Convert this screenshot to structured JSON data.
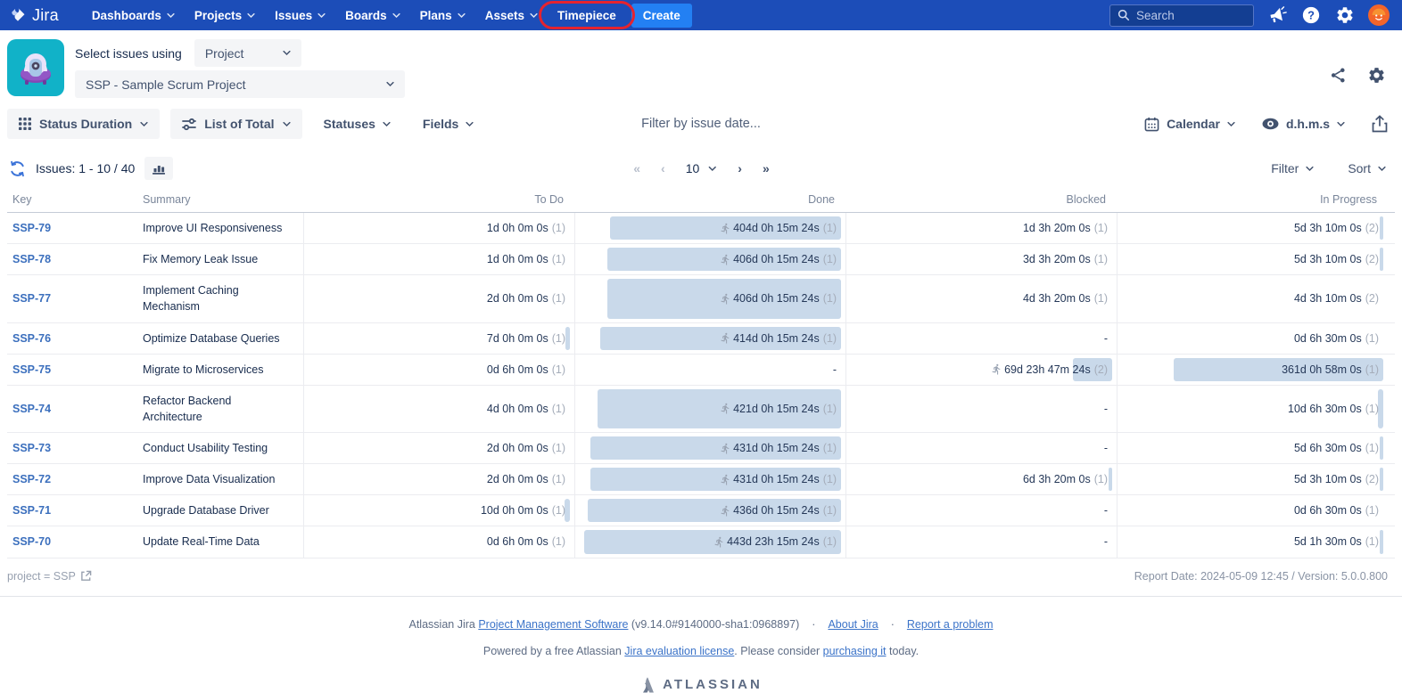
{
  "nav": {
    "logo_text": "Jira",
    "items": [
      "Dashboards",
      "Projects",
      "Issues",
      "Boards",
      "Plans",
      "Assets"
    ],
    "timepiece_label": "Timepiece",
    "create_label": "Create",
    "search_placeholder": "Search"
  },
  "header": {
    "select_label": "Select issues using",
    "mode_value": "Project",
    "project_value": "SSP - Sample Scrum Project"
  },
  "toolbar": {
    "report_type_label": "Status Duration",
    "view_mode_label": "List of Total",
    "statuses_label": "Statuses",
    "fields_label": "Fields",
    "date_filter_placeholder": "Filter by issue date...",
    "calendar_label": "Calendar",
    "time_format_label": "d.h.m.s"
  },
  "listbar": {
    "issues_label": "Issues: 1 - 10 / 40",
    "page_size": "10",
    "filter_label": "Filter",
    "sort_label": "Sort"
  },
  "table": {
    "columns": [
      "Key",
      "Summary",
      "To Do",
      "Done",
      "Blocked",
      "In Progress"
    ],
    "rows": [
      {
        "key": "SSP-79",
        "summary": "Improve UI Responsiveness",
        "todo": {
          "text": "1d 0h 0m 0s",
          "count": "(1)",
          "bar": 0
        },
        "done": {
          "text": "404d 0h 15m 24s",
          "count": "(1)",
          "bar": 0.88,
          "runner": true
        },
        "blocked": {
          "text": "1d 3h 20m 0s",
          "count": "(1)",
          "bar": 0
        },
        "inprogress": {
          "text": "5d 3h 10m 0s",
          "count": "(2)",
          "bar": 0.012
        }
      },
      {
        "key": "SSP-78",
        "summary": "Fix Memory Leak Issue",
        "todo": {
          "text": "1d 0h 0m 0s",
          "count": "(1)",
          "bar": 0
        },
        "done": {
          "text": "406d 0h 15m 24s",
          "count": "(1)",
          "bar": 0.89,
          "runner": true
        },
        "blocked": {
          "text": "3d 3h 20m 0s",
          "count": "(1)",
          "bar": 0
        },
        "inprogress": {
          "text": "5d 3h 10m 0s",
          "count": "(2)",
          "bar": 0.012
        }
      },
      {
        "key": "SSP-77",
        "summary": "Implement Caching Mechanism",
        "todo": {
          "text": "2d 0h 0m 0s",
          "count": "(1)",
          "bar": 0
        },
        "done": {
          "text": "406d 0h 15m 24s",
          "count": "(1)",
          "bar": 0.89,
          "runner": true
        },
        "blocked": {
          "text": "4d 3h 20m 0s",
          "count": "(1)",
          "bar": 0
        },
        "inprogress": {
          "text": "4d 3h 10m 0s",
          "count": "(2)",
          "bar": 0
        }
      },
      {
        "key": "SSP-76",
        "summary": "Optimize Database Queries",
        "todo": {
          "text": "7d 0h 0m 0s",
          "count": "(1)",
          "bar": 0.016
        },
        "done": {
          "text": "414d 0h 15m 24s",
          "count": "(1)",
          "bar": 0.92,
          "runner": true
        },
        "blocked": {
          "text": "-"
        },
        "inprogress": {
          "text": "0d 6h 30m 0s",
          "count": "(1)",
          "bar": 0
        }
      },
      {
        "key": "SSP-75",
        "summary": "Migrate to Microservices",
        "todo": {
          "text": "0d 6h 0m 0s",
          "count": "(1)",
          "bar": 0
        },
        "done": {
          "text": "-"
        },
        "blocked": {
          "text": "69d 23h 47m 24s",
          "count": "(2)",
          "bar": 0.15,
          "runner": true
        },
        "inprogress": {
          "text": "361d 0h 58m 0s",
          "count": "(1)",
          "bar": 0.8
        }
      },
      {
        "key": "SSP-74",
        "summary": "Refactor Backend Architecture",
        "todo": {
          "text": "4d 0h 0m 0s",
          "count": "(1)",
          "bar": 0
        },
        "done": {
          "text": "421d 0h 15m 24s",
          "count": "(1)",
          "bar": 0.93,
          "runner": true
        },
        "blocked": {
          "text": "-"
        },
        "inprogress": {
          "text": "10d 6h 30m 0s",
          "count": "(1)",
          "bar": 0.022
        }
      },
      {
        "key": "SSP-73",
        "summary": "Conduct Usability Testing",
        "todo": {
          "text": "2d 0h 0m 0s",
          "count": "(1)",
          "bar": 0
        },
        "done": {
          "text": "431d 0h 15m 24s",
          "count": "(1)",
          "bar": 0.955,
          "runner": true
        },
        "blocked": {
          "text": "-"
        },
        "inprogress": {
          "text": "5d 6h 30m 0s",
          "count": "(1)",
          "bar": 0.012
        }
      },
      {
        "key": "SSP-72",
        "summary": "Improve Data Visualization",
        "todo": {
          "text": "2d 0h 0m 0s",
          "count": "(1)",
          "bar": 0
        },
        "done": {
          "text": "431d 0h 15m 24s",
          "count": "(1)",
          "bar": 0.955,
          "runner": true
        },
        "blocked": {
          "text": "6d 3h 20m 0s",
          "count": "(1)",
          "bar": 0.014
        },
        "inprogress": {
          "text": "5d 3h 10m 0s",
          "count": "(2)",
          "bar": 0.012
        }
      },
      {
        "key": "SSP-71",
        "summary": "Upgrade Database Driver",
        "todo": {
          "text": "10d 0h 0m 0s",
          "count": "(1)",
          "bar": 0.022
        },
        "done": {
          "text": "436d 0h 15m 24s",
          "count": "(1)",
          "bar": 0.965,
          "runner": true
        },
        "blocked": {
          "text": "-"
        },
        "inprogress": {
          "text": "0d 6h 30m 0s",
          "count": "(1)",
          "bar": 0
        }
      },
      {
        "key": "SSP-70",
        "summary": "Update Real-Time Data",
        "todo": {
          "text": "0d 6h 0m 0s",
          "count": "(1)",
          "bar": 0
        },
        "done": {
          "text": "443d 23h 15m 24s",
          "count": "(1)",
          "bar": 0.98,
          "runner": true
        },
        "blocked": {
          "text": "-"
        },
        "inprogress": {
          "text": "5d 1h 30m 0s",
          "count": "(1)",
          "bar": 0.012
        }
      }
    ]
  },
  "meta": {
    "jql": "project = SSP",
    "report_info": "Report Date: 2024-05-09 12:45 / Version: 5.0.0.800"
  },
  "site_footer": {
    "line1": [
      {
        "text": "Atlassian Jira "
      },
      {
        "text": "Project Management Software",
        "link": true
      },
      {
        "text": " (v9.14.0#9140000-sha1:0968897)"
      },
      {
        "sep": true
      },
      {
        "text": "About Jira",
        "link": true
      },
      {
        "sep": true
      },
      {
        "text": "Report a problem",
        "link": true
      }
    ],
    "line2": [
      {
        "text": "Powered by a free Atlassian "
      },
      {
        "text": "Jira evaluation license",
        "link": true
      },
      {
        "text": ". Please consider "
      },
      {
        "text": "purchasing it",
        "link": true
      },
      {
        "text": " today."
      }
    ],
    "logo_text": "ATLASSIAN"
  },
  "colors": {
    "nav_bg": "#1c4db8",
    "create_button": "#2380f3",
    "annotation_red": "#e5232f",
    "bar_fill": "#c9d9ea",
    "key_link": "#3b6fbd",
    "app_icon_teal": "#11b2c8"
  }
}
